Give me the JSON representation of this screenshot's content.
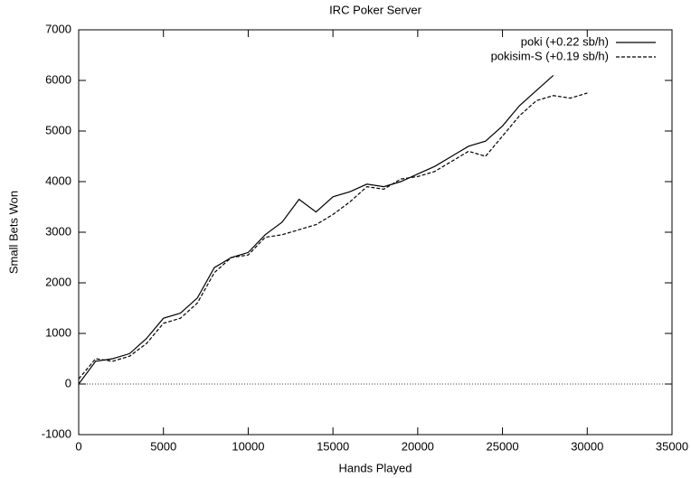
{
  "chart_data": {
    "type": "line",
    "title": "IRC Poker Server",
    "xlabel": "Hands Played",
    "ylabel": "Small Bets Won",
    "x": [
      0,
      1000,
      2000,
      3000,
      4000,
      5000,
      6000,
      7000,
      8000,
      9000,
      10000,
      11000,
      12000,
      13000,
      14000,
      15000,
      16000,
      17000,
      18000,
      19000,
      20000,
      21000,
      22000,
      23000,
      24000,
      25000,
      26000,
      27000,
      28000,
      29000,
      30000
    ],
    "series": [
      {
        "name": "poki (+0.22 sb/h)",
        "color": "#000000",
        "dash": "solid",
        "values": [
          0,
          450,
          500,
          600,
          900,
          1300,
          1400,
          1700,
          2300,
          2500,
          2600,
          2950,
          3200,
          3650,
          3400,
          3700,
          3800,
          3950,
          3900,
          4000,
          4150,
          4300,
          4500,
          4700,
          4800,
          5100,
          5500,
          5800,
          6100,
          null,
          null
        ]
      },
      {
        "name": "pokisim-S (+0.19 sb/h)",
        "color": "#000000",
        "dash": "dashed",
        "values": [
          100,
          500,
          450,
          550,
          800,
          1200,
          1300,
          1600,
          2200,
          2500,
          2550,
          2900,
          2950,
          3050,
          3150,
          3350,
          3600,
          3900,
          3850,
          4050,
          4100,
          4200,
          4400,
          4600,
          4500,
          4900,
          5300,
          5600,
          5700,
          5650,
          5750
        ]
      }
    ],
    "xlim": [
      0,
      35000
    ],
    "xticks": [
      0,
      5000,
      10000,
      15000,
      20000,
      25000,
      30000,
      35000
    ],
    "ylim": [
      -1000,
      7000
    ],
    "yticks": [
      -1000,
      0,
      1000,
      2000,
      3000,
      4000,
      5000,
      6000,
      7000
    ],
    "zeroline": true,
    "legend": "top-right"
  }
}
